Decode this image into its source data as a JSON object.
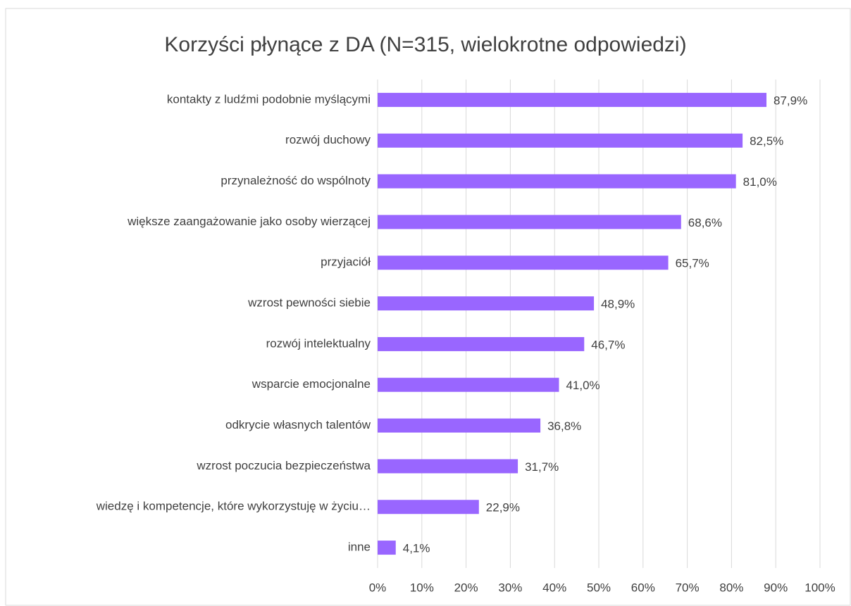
{
  "chart_data": {
    "type": "bar",
    "orientation": "horizontal",
    "title": "Korzyści płynące z DA (N=315, wielokrotne odpowiedzi)",
    "categories": [
      "kontakty z ludźmi podobnie myślącymi",
      "rozwój duchowy",
      "przynależność do wspólnoty",
      "większe zaangażowanie jako osoby wierzącej",
      "przyjaciół",
      "wzrost pewności siebie",
      "rozwój intelektualny",
      "wsparcie emocjonalne",
      "odkrycie własnych talentów",
      "wzrost poczucia bezpieczeństwa",
      "wiedzę i kompetencje, które wykorzystuję w życiu…",
      "inne"
    ],
    "values": [
      87.9,
      82.5,
      81.0,
      68.6,
      65.7,
      48.9,
      46.7,
      41.0,
      36.8,
      31.7,
      22.9,
      4.1
    ],
    "value_labels": [
      "87,9%",
      "82,5%",
      "81,0%",
      "68,6%",
      "65,7%",
      "48,9%",
      "46,7%",
      "41,0%",
      "36,8%",
      "31,7%",
      "22,9%",
      "4,1%"
    ],
    "color": "#9966ff",
    "xlim": [
      0,
      100
    ],
    "xticks": [
      {
        "value": 0,
        "label": "0%"
      },
      {
        "value": 10,
        "label": "10%"
      },
      {
        "value": 20,
        "label": "20%"
      },
      {
        "value": 30,
        "label": "30%"
      },
      {
        "value": 40,
        "label": "40%"
      },
      {
        "value": 50,
        "label": "50%"
      },
      {
        "value": 60,
        "label": "60%"
      },
      {
        "value": 70,
        "label": "70%"
      },
      {
        "value": 80,
        "label": "80%"
      },
      {
        "value": 90,
        "label": "90%"
      },
      {
        "value": 100,
        "label": "100%"
      }
    ],
    "grid": true
  }
}
